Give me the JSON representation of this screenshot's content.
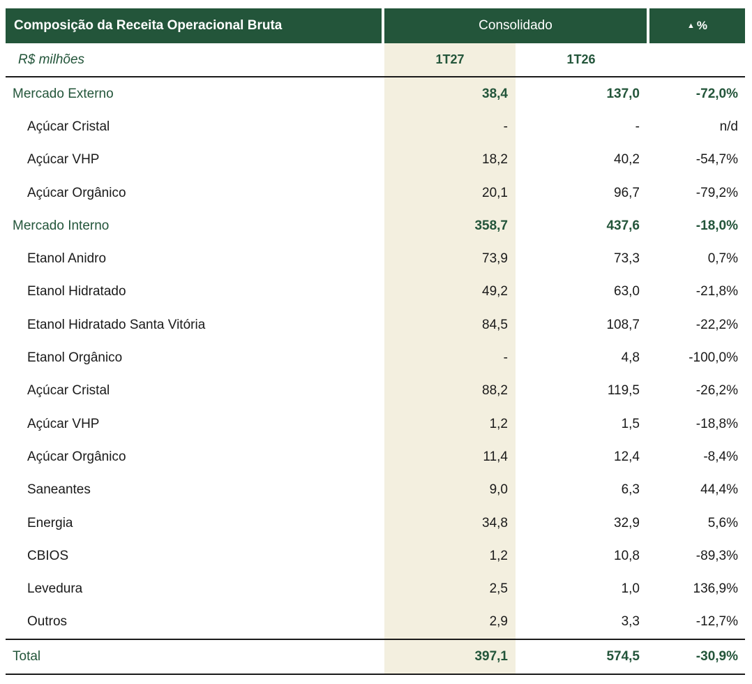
{
  "header": {
    "title": "Composição da Receita Operacional Bruta",
    "consolidado": "Consolidado",
    "delta": "%",
    "delta_symbol": "▲"
  },
  "subheader": {
    "unit": "R$ milhões",
    "col1": "1T27",
    "col2": "1T26"
  },
  "rows": [
    {
      "label": "Mercado Externo",
      "v1": "38,4",
      "v2": "137,0",
      "v3": "-72,0%"
    },
    {
      "label": "Açúcar Cristal",
      "v1": "-",
      "v2": "-",
      "v3": "n/d"
    },
    {
      "label": "Açúcar VHP",
      "v1": "18,2",
      "v2": "40,2",
      "v3": "-54,7%"
    },
    {
      "label": "Açúcar Orgânico",
      "v1": "20,1",
      "v2": "96,7",
      "v3": "-79,2%"
    },
    {
      "label": "Mercado Interno",
      "v1": "358,7",
      "v2": "437,6",
      "v3": "-18,0%"
    },
    {
      "label": "Etanol Anidro",
      "v1": "73,9",
      "v2": "73,3",
      "v3": "0,7%"
    },
    {
      "label": "Etanol Hidratado",
      "v1": "49,2",
      "v2": "63,0",
      "v3": "-21,8%"
    },
    {
      "label": "Etanol Hidratado Santa Vitória",
      "v1": "84,5",
      "v2": "108,7",
      "v3": "-22,2%"
    },
    {
      "label": "Etanol Orgânico",
      "v1": "-",
      "v2": "4,8",
      "v3": "-100,0%"
    },
    {
      "label": "Açúcar Cristal",
      "v1": "88,2",
      "v2": "119,5",
      "v3": "-26,2%"
    },
    {
      "label": "Açúcar VHP",
      "v1": "1,2",
      "v2": "1,5",
      "v3": "-18,8%"
    },
    {
      "label": "Açúcar Orgânico",
      "v1": "11,4",
      "v2": "12,4",
      "v3": "-8,4%"
    },
    {
      "label": "Saneantes",
      "v1": "9,0",
      "v2": "6,3",
      "v3": "44,4%"
    },
    {
      "label": "Energia",
      "v1": "34,8",
      "v2": "32,9",
      "v3": "5,6%"
    },
    {
      "label": "CBIOS",
      "v1": "1,2",
      "v2": "10,8",
      "v3": "-89,3%"
    },
    {
      "label": "Levedura",
      "v1": "2,5",
      "v2": "1,0",
      "v3": "136,9%"
    },
    {
      "label": "Outros",
      "v1": "2,9",
      "v2": "3,3",
      "v3": "-12,7%"
    }
  ],
  "total": {
    "label": "Total",
    "v1": "397,1",
    "v2": "574,5",
    "v3": "-30,9%"
  },
  "colors": {
    "accent": "#23553a",
    "highlight": "#f3efdf"
  }
}
